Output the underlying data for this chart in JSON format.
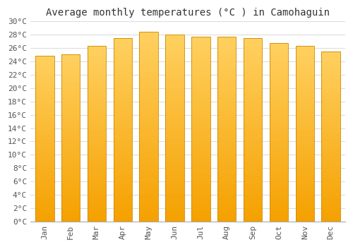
{
  "title": "Average monthly temperatures (°C ) in Camohaguin",
  "months": [
    "Jan",
    "Feb",
    "Mar",
    "Apr",
    "May",
    "Jun",
    "Jul",
    "Aug",
    "Sep",
    "Oct",
    "Nov",
    "Dec"
  ],
  "values": [
    24.9,
    25.1,
    26.3,
    27.5,
    28.5,
    28.0,
    27.7,
    27.7,
    27.5,
    26.8,
    26.3,
    25.5
  ],
  "bar_color_top": "#FFD060",
  "bar_color_bottom": "#F5A000",
  "bar_edge_color": "#CC8800",
  "background_color": "#ffffff",
  "plot_bg_color": "#ffffff",
  "grid_color": "#dddddd",
  "ylim": [
    0,
    30
  ],
  "ytick_step": 2,
  "title_fontsize": 10,
  "tick_fontsize": 8,
  "font_family": "monospace",
  "bar_width": 0.72
}
